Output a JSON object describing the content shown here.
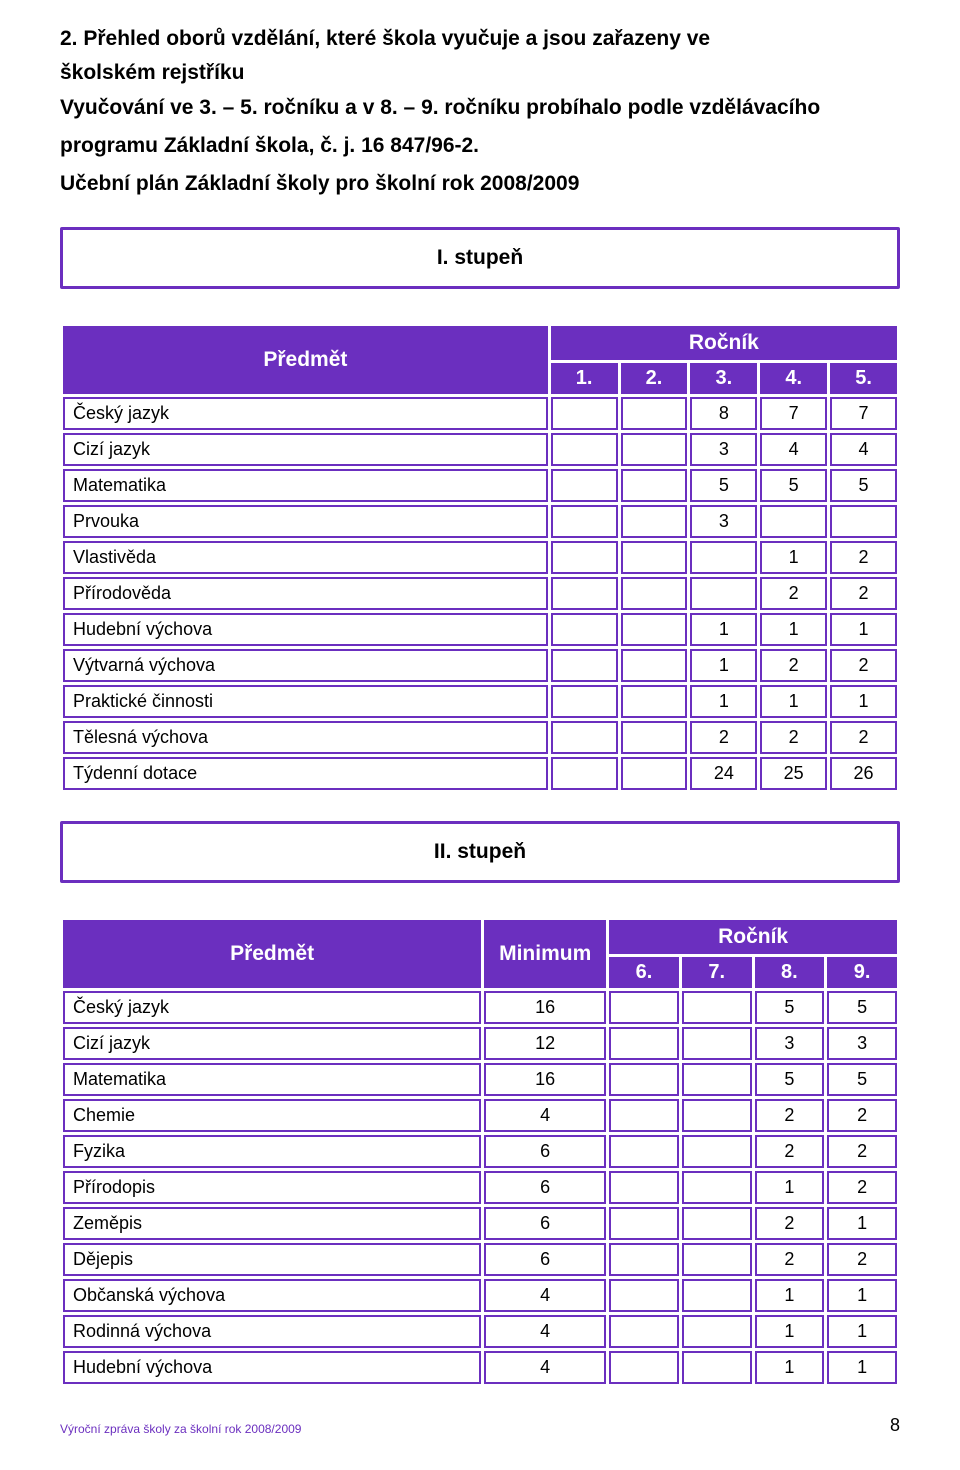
{
  "heading_lines": [
    "2. Přehled oborů vzdělání, které škola vyučuje a jsou zařazeny ve",
    "školském rejstříku"
  ],
  "sub_lines": [
    "Vyučování ve 3. – 5. ročníku a v 8. – 9. ročníku probíhalo podle vzdělávacího",
    "programu Základní škola, č. j. 16 847/96-2."
  ],
  "sub2": "Učební plán Základní školy pro školní rok 2008/2009",
  "level1_label": "I. stupeň",
  "level2_label": "II. stupeň",
  "table1": {
    "predmet_head": "Předmět",
    "rocnik_head": "Ročník",
    "cols": [
      "1.",
      "2.",
      "3.",
      "4.",
      "5."
    ],
    "rows": [
      {
        "label": "Český jazyk",
        "vals": [
          "",
          "",
          "8",
          "7",
          "7"
        ]
      },
      {
        "label": "Cizí jazyk",
        "vals": [
          "",
          "",
          "3",
          "4",
          "4"
        ]
      },
      {
        "label": "Matematika",
        "vals": [
          "",
          "",
          "5",
          "5",
          "5"
        ]
      },
      {
        "label": "Prvouka",
        "vals": [
          "",
          "",
          "3",
          "",
          ""
        ]
      },
      {
        "label": "Vlastivěda",
        "vals": [
          "",
          "",
          "",
          "1",
          "2"
        ]
      },
      {
        "label": "Přírodověda",
        "vals": [
          "",
          "",
          "",
          "2",
          "2"
        ]
      },
      {
        "label": "Hudební výchova",
        "vals": [
          "",
          "",
          "1",
          "1",
          "1"
        ]
      },
      {
        "label": "Výtvarná výchova",
        "vals": [
          "",
          "",
          "1",
          "2",
          "2"
        ]
      },
      {
        "label": "Praktické činnosti",
        "vals": [
          "",
          "",
          "1",
          "1",
          "1"
        ]
      },
      {
        "label": "Tělesná výchova",
        "vals": [
          "",
          "",
          "2",
          "2",
          "2"
        ]
      },
      {
        "label": "Týdenní dotace",
        "vals": [
          "",
          "",
          "24",
          "25",
          "26"
        ]
      }
    ]
  },
  "table2": {
    "predmet_head": "Předmět",
    "min_head": "Minimum",
    "rocnik_head": "Ročník",
    "cols": [
      "6.",
      "7.",
      "8.",
      "9."
    ],
    "rows": [
      {
        "label": "Český jazyk",
        "min": "16",
        "vals": [
          "",
          "",
          "5",
          "5"
        ]
      },
      {
        "label": "Cizí jazyk",
        "min": "12",
        "vals": [
          "",
          "",
          "3",
          "3"
        ]
      },
      {
        "label": "Matematika",
        "min": "16",
        "vals": [
          "",
          "",
          "5",
          "5"
        ]
      },
      {
        "label": "Chemie",
        "min": "4",
        "vals": [
          "",
          "",
          "2",
          "2"
        ]
      },
      {
        "label": "Fyzika",
        "min": "6",
        "vals": [
          "",
          "",
          "2",
          "2"
        ]
      },
      {
        "label": "Přírodopis",
        "min": "6",
        "vals": [
          "",
          "",
          "1",
          "2"
        ]
      },
      {
        "label": "Zeměpis",
        "min": "6",
        "vals": [
          "",
          "",
          "2",
          "1"
        ]
      },
      {
        "label": "Dějepis",
        "min": "6",
        "vals": [
          "",
          "",
          "2",
          "2"
        ]
      },
      {
        "label": "Občanská výchova",
        "min": "4",
        "vals": [
          "",
          "",
          "1",
          "1"
        ]
      },
      {
        "label": "Rodinná výchova",
        "min": "4",
        "vals": [
          "",
          "",
          "1",
          "1"
        ]
      },
      {
        "label": "Hudební výchova",
        "min": "4",
        "vals": [
          "",
          "",
          "1",
          "1"
        ]
      }
    ]
  },
  "footer_text": "Výroční zpráva školy za školní rok 2008/2009",
  "page_number": "8",
  "colors": {
    "purple": "#6b2fbf",
    "white": "#ffffff",
    "black": "#000000"
  }
}
